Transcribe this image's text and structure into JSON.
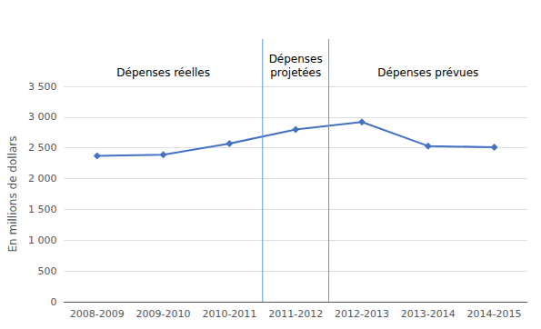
{
  "chart_data": {
    "type": "line",
    "categories": [
      "2008-2009",
      "2009-2010",
      "2010-2011",
      "2011-2012",
      "2012-2013",
      "2013-2014",
      "2014-2015"
    ],
    "values": [
      2370,
      2390,
      2570,
      2800,
      2920,
      2530,
      2510
    ],
    "color": "#4472C4",
    "marker": "diamond",
    "ylabel": "En millions de dollars",
    "ylim": [
      0,
      3500
    ],
    "yticks": [
      0,
      500,
      {
        "value": 1000,
        "label": "1 000"
      },
      {
        "value": 1500,
        "label": "1 500"
      },
      {
        "value": 2000,
        "label": "2 000"
      },
      {
        "value": 2500,
        "label": "2 500"
      },
      {
        "value": 3000,
        "label": "3 000"
      },
      {
        "value": 3500,
        "label": "3 500"
      }
    ],
    "grid": true,
    "vlines": [
      2.5,
      3.5
    ],
    "vline_color": "#5B9BD5",
    "annotations": [
      {
        "text": "Dépenses réelles",
        "x": "2009-2010"
      },
      {
        "text": "Dépenses\nprojetées",
        "x": "2011-2012"
      },
      {
        "text": "Dépenses prévues",
        "x": "2013-2014"
      }
    ]
  }
}
